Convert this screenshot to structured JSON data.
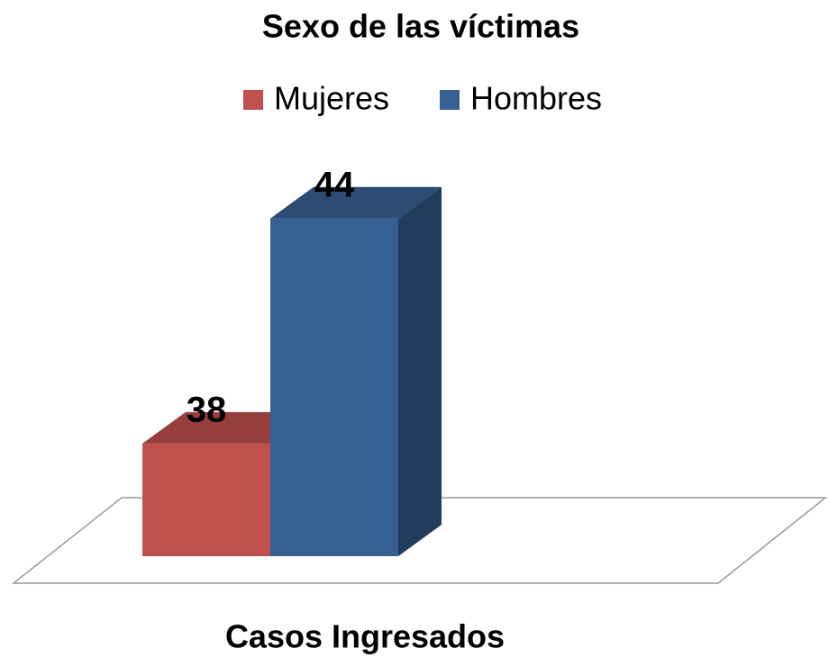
{
  "chart_data": {
    "type": "bar3d",
    "title": "Sexo de las víctimas",
    "categories": [
      "Casos Ingresados"
    ],
    "series": [
      {
        "name": "Mujeres",
        "color": "#c0504d",
        "values": [
          38
        ]
      },
      {
        "name": "Hombres",
        "color": "#376092",
        "values": [
          44
        ]
      }
    ],
    "ylim": [
      35,
      45
    ],
    "legend": "top"
  }
}
